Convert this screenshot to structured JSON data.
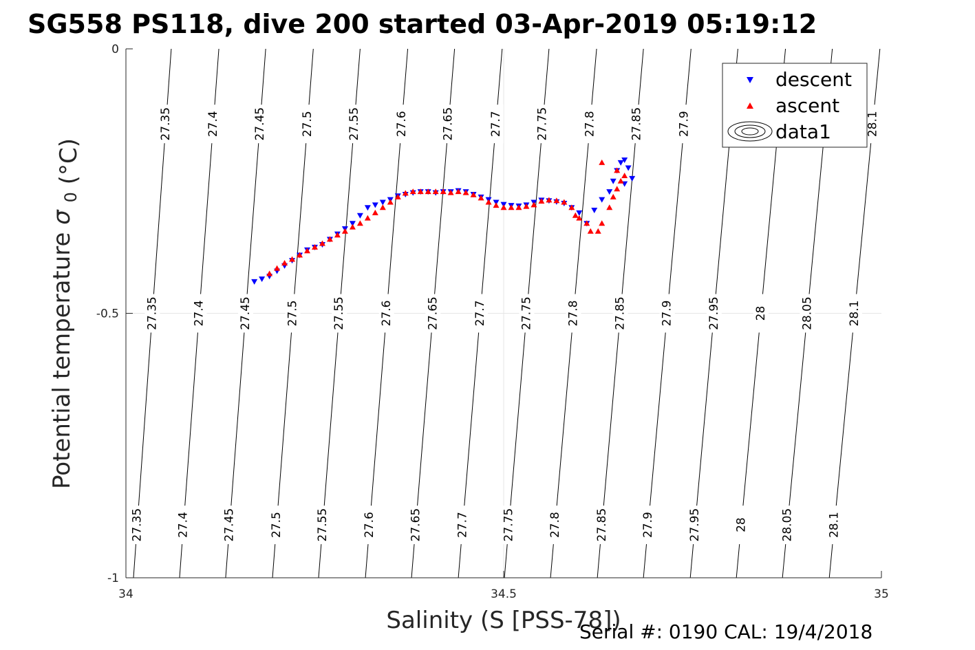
{
  "chart_data": {
    "type": "scatter",
    "title": "SG558 PS118, dive 200 started 03-Apr-2019 05:19:12",
    "xlabel": "Salinity (S [PSS-78])",
    "ylabel": "Potential temperature",
    "ylabel_symbol": "σ",
    "ylabel_subscript": "0",
    "ylabel_unit": "(°C)",
    "footer": "Serial #: 0190  CAL: 19/4/2018",
    "xlim": [
      34,
      35
    ],
    "ylim": [
      -1,
      0
    ],
    "x_ticks": [
      "34",
      "34.5",
      "35"
    ],
    "y_ticks": [
      "0",
      "-0.5",
      "-1"
    ],
    "grid": true,
    "legend_position": "top-right",
    "legend": [
      "descent",
      "ascent",
      "data1"
    ],
    "colors": {
      "descent": "#0000ff",
      "ascent": "#ff0000",
      "contour": "#000000"
    },
    "contour_levels": [
      "27.35",
      "27.4",
      "27.45",
      "27.5",
      "27.55",
      "27.6",
      "27.65",
      "27.7",
      "27.75",
      "27.8",
      "27.85",
      "27.9",
      "27.95",
      "28",
      "28.05",
      "28.1"
    ],
    "contour_salinity_at_0C": [
      34.06,
      34.123,
      34.185,
      34.248,
      34.31,
      34.373,
      34.435,
      34.498,
      34.56,
      34.623,
      34.685,
      34.748,
      34.81,
      34.873,
      34.935,
      34.998
    ],
    "contour_salinity_at_minus1C": [
      34.01,
      34.071,
      34.132,
      34.194,
      34.255,
      34.317,
      34.378,
      34.44,
      34.501,
      34.562,
      34.624,
      34.685,
      34.747,
      34.808,
      34.869,
      34.931
    ],
    "contour_labels_top": [
      "27.35",
      "27.4",
      "27.45",
      "27.5",
      "27.55",
      "27.6",
      "27.65",
      "27.7",
      "27.75",
      "27.8",
      "27.85",
      "27.9",
      "28.1"
    ],
    "contour_labels_middle": [
      "27.35",
      "27.4",
      "27.45",
      "27.5",
      "27.55",
      "27.6",
      "27.65",
      "27.7",
      "27.75",
      "27.8",
      "27.85",
      "27.9",
      "27.95",
      "28",
      "28.05",
      "28.1"
    ],
    "contour_labels_bottom": [
      "27.35",
      "27.4",
      "27.45",
      "27.5",
      "27.55",
      "27.6",
      "27.65",
      "27.7",
      "27.75",
      "27.8",
      "27.85",
      "27.9",
      "27.95",
      "28",
      "28.05",
      "28.1"
    ],
    "series": [
      {
        "name": "descent",
        "marker": "triangle-down",
        "points": [
          [
            34.17,
            -0.44
          ],
          [
            34.18,
            -0.435
          ],
          [
            34.19,
            -0.43
          ],
          [
            34.2,
            -0.42
          ],
          [
            34.21,
            -0.41
          ],
          [
            34.22,
            -0.4
          ],
          [
            34.23,
            -0.39
          ],
          [
            34.24,
            -0.38
          ],
          [
            34.25,
            -0.375
          ],
          [
            34.26,
            -0.37
          ],
          [
            34.27,
            -0.36
          ],
          [
            34.28,
            -0.35
          ],
          [
            34.29,
            -0.34
          ],
          [
            34.3,
            -0.33
          ],
          [
            34.31,
            -0.315
          ],
          [
            34.32,
            -0.3
          ],
          [
            34.33,
            -0.295
          ],
          [
            34.34,
            -0.29
          ],
          [
            34.35,
            -0.285
          ],
          [
            34.36,
            -0.278
          ],
          [
            34.37,
            -0.275
          ],
          [
            34.38,
            -0.272
          ],
          [
            34.39,
            -0.27
          ],
          [
            34.4,
            -0.27
          ],
          [
            34.41,
            -0.272
          ],
          [
            34.42,
            -0.27
          ],
          [
            34.43,
            -0.27
          ],
          [
            34.44,
            -0.268
          ],
          [
            34.45,
            -0.27
          ],
          [
            34.46,
            -0.275
          ],
          [
            34.47,
            -0.28
          ],
          [
            34.48,
            -0.285
          ],
          [
            34.49,
            -0.29
          ],
          [
            34.5,
            -0.294
          ],
          [
            34.51,
            -0.296
          ],
          [
            34.52,
            -0.297
          ],
          [
            34.53,
            -0.295
          ],
          [
            34.54,
            -0.29
          ],
          [
            34.55,
            -0.286
          ],
          [
            34.56,
            -0.287
          ],
          [
            34.57,
            -0.289
          ],
          [
            34.58,
            -0.292
          ],
          [
            34.59,
            -0.3
          ],
          [
            34.6,
            -0.31
          ],
          [
            34.61,
            -0.33
          ],
          [
            34.62,
            -0.305
          ],
          [
            34.63,
            -0.285
          ],
          [
            34.64,
            -0.27
          ],
          [
            34.645,
            -0.25
          ],
          [
            34.65,
            -0.23
          ],
          [
            34.655,
            -0.215
          ],
          [
            34.66,
            -0.21
          ],
          [
            34.665,
            -0.225
          ],
          [
            34.67,
            -0.245
          ],
          [
            34.66,
            -0.255
          ]
        ]
      },
      {
        "name": "ascent",
        "marker": "triangle-up",
        "points": [
          [
            34.19,
            -0.425
          ],
          [
            34.2,
            -0.415
          ],
          [
            34.21,
            -0.405
          ],
          [
            34.22,
            -0.398
          ],
          [
            34.23,
            -0.39
          ],
          [
            34.24,
            -0.382
          ],
          [
            34.25,
            -0.375
          ],
          [
            34.26,
            -0.368
          ],
          [
            34.27,
            -0.36
          ],
          [
            34.28,
            -0.352
          ],
          [
            34.29,
            -0.345
          ],
          [
            34.3,
            -0.337
          ],
          [
            34.31,
            -0.33
          ],
          [
            34.32,
            -0.32
          ],
          [
            34.33,
            -0.31
          ],
          [
            34.34,
            -0.3
          ],
          [
            34.35,
            -0.29
          ],
          [
            34.36,
            -0.28
          ],
          [
            34.37,
            -0.273
          ],
          [
            34.38,
            -0.27
          ],
          [
            34.39,
            -0.27
          ],
          [
            34.4,
            -0.27
          ],
          [
            34.41,
            -0.27
          ],
          [
            34.42,
            -0.27
          ],
          [
            34.43,
            -0.272
          ],
          [
            34.44,
            -0.27
          ],
          [
            34.45,
            -0.272
          ],
          [
            34.46,
            -0.276
          ],
          [
            34.47,
            -0.282
          ],
          [
            34.48,
            -0.29
          ],
          [
            34.49,
            -0.296
          ],
          [
            34.5,
            -0.3
          ],
          [
            34.51,
            -0.3
          ],
          [
            34.52,
            -0.3
          ],
          [
            34.53,
            -0.298
          ],
          [
            34.54,
            -0.295
          ],
          [
            34.55,
            -0.288
          ],
          [
            34.56,
            -0.286
          ],
          [
            34.57,
            -0.287
          ],
          [
            34.58,
            -0.29
          ],
          [
            34.59,
            -0.3
          ],
          [
            34.595,
            -0.315
          ],
          [
            34.6,
            -0.32
          ],
          [
            34.61,
            -0.33
          ],
          [
            34.615,
            -0.345
          ],
          [
            34.625,
            -0.345
          ],
          [
            34.63,
            -0.33
          ],
          [
            34.64,
            -0.3
          ],
          [
            34.645,
            -0.28
          ],
          [
            34.65,
            -0.265
          ],
          [
            34.655,
            -0.25
          ],
          [
            34.66,
            -0.24
          ],
          [
            34.65,
            -0.23
          ],
          [
            34.63,
            -0.215
          ]
        ]
      }
    ]
  }
}
